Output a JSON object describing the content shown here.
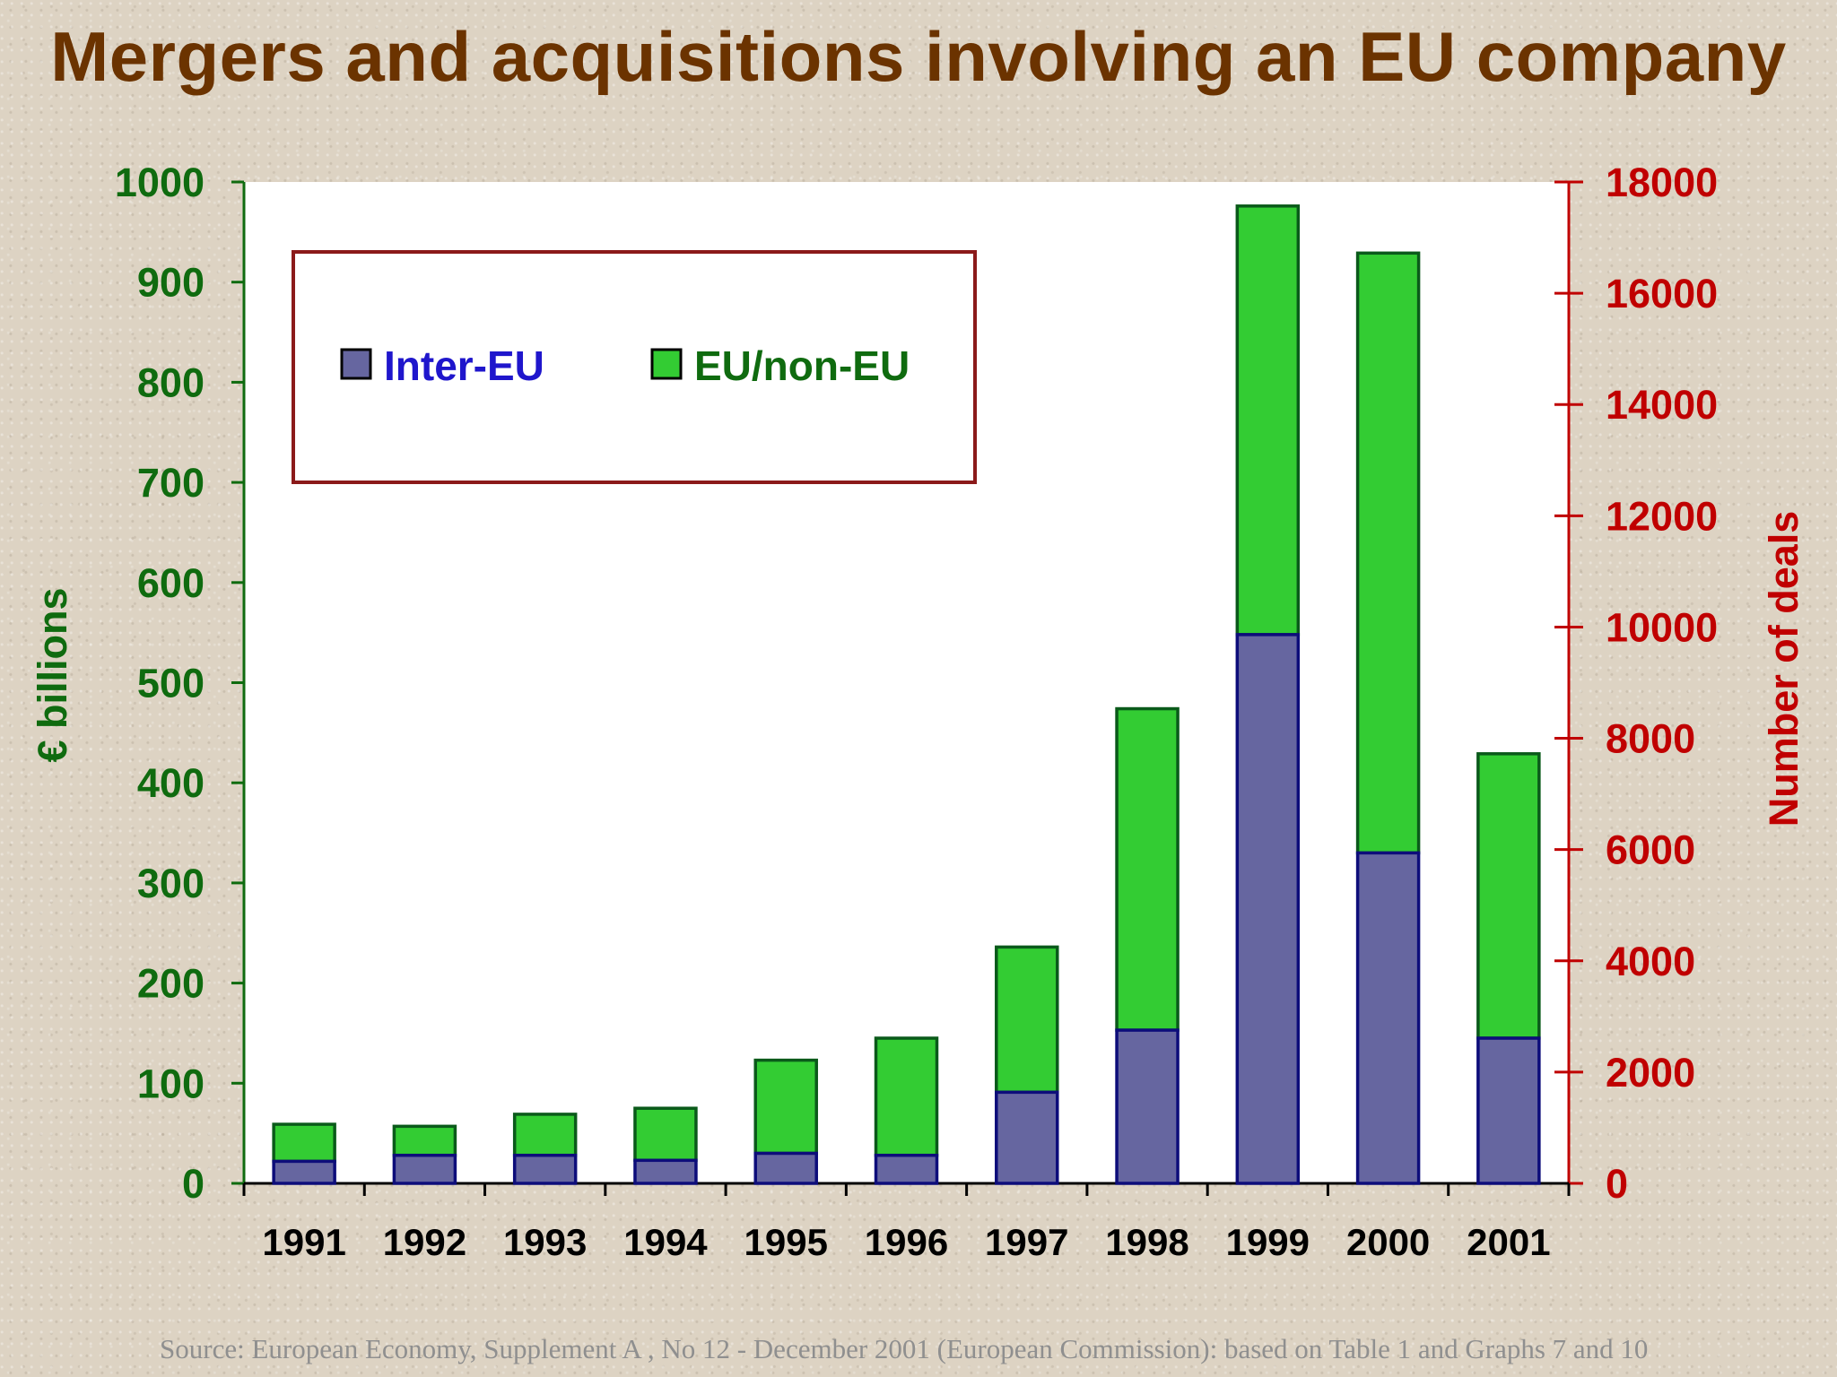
{
  "title": "Mergers and acquisitions involving an EU company",
  "source": "Source: European Economy, Supplement A , No 12  - December 2001 (European Commission): based on Table 1 and Graphs 7 and 10",
  "colors": {
    "title": "#6b3300",
    "left_axis": "#0f6b0f",
    "right_axis": "#c00000",
    "inter_eu": "#6666a0",
    "eu_non_eu": "#33cc33",
    "legend_inter_text": "#1f16cc",
    "legend_eu_text": "#0f6b0f",
    "legend_border": "#8b1a1a",
    "background": "#ddd3c3"
  },
  "chart_data": {
    "type": "bar",
    "stacked": true,
    "categories": [
      "1991",
      "1992",
      "1993",
      "1994",
      "1995",
      "1996",
      "1997",
      "1998",
      "1999",
      "2000",
      "2001"
    ],
    "series": [
      {
        "name": "Inter-EU",
        "values": [
          22,
          28,
          28,
          23,
          30,
          28,
          91,
          153,
          548,
          330,
          145
        ]
      },
      {
        "name": "EU/non-EU",
        "values": [
          37,
          29,
          41,
          52,
          93,
          117,
          145,
          321,
          428,
          599,
          284
        ]
      }
    ],
    "ylabel": "€ billions",
    "ylim": [
      0,
      1000
    ],
    "yticks": [
      "1000",
      "900",
      "800",
      "700",
      "600",
      "500",
      "400",
      "300",
      "200",
      "100",
      "0"
    ],
    "y2label": "Number of deals",
    "y2lim": [
      0,
      18000
    ],
    "y2ticks": [
      "18000",
      "16000",
      "14000",
      "12000",
      "10000",
      "8000",
      "6000",
      "4000",
      "2000",
      "0"
    ],
    "grid": false,
    "legend_position": "top-left"
  }
}
